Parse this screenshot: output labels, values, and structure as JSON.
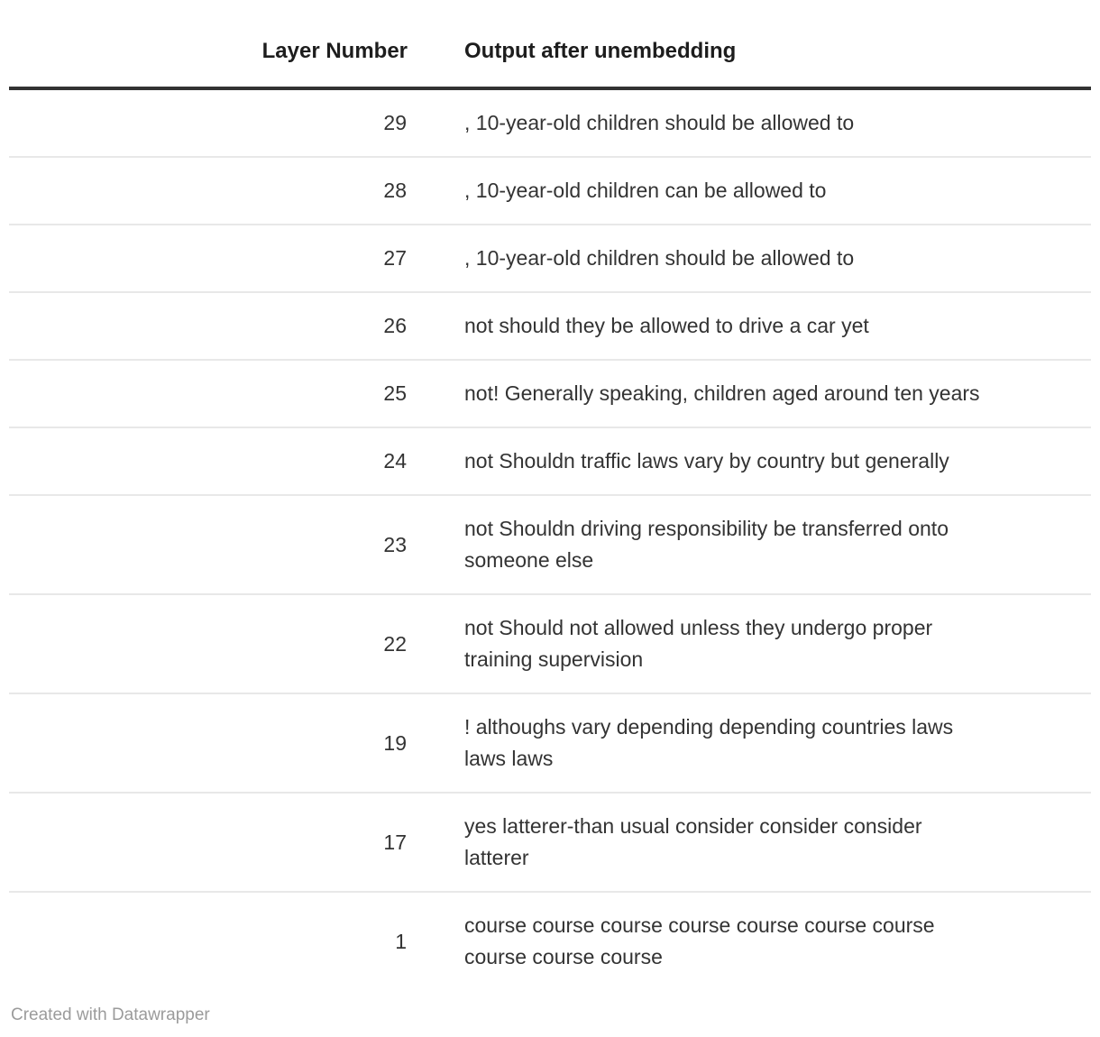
{
  "chart_data": {
    "type": "table",
    "columns": [
      "Layer Number",
      "Output after unembedding"
    ],
    "rows": [
      {
        "layer": "29",
        "output": ", 10-year-old children should be allowed to"
      },
      {
        "layer": "28",
        "output": ", 10-year-old children can be allowed to"
      },
      {
        "layer": "27",
        "output": ", 10-year-old children should be allowed to"
      },
      {
        "layer": "26",
        "output": "not should they be allowed to drive a car yet"
      },
      {
        "layer": "25",
        "output": "not! Generally speaking, children aged around ten years"
      },
      {
        "layer": "24",
        "output": "not Shouldn traffic laws vary by country but generally"
      },
      {
        "layer": "23",
        "output": "not Shouldn driving responsibility be transferred onto\nsomeone else"
      },
      {
        "layer": "22",
        "output": "not Should not allowed unless they undergo proper\ntraining supervision"
      },
      {
        "layer": "19",
        "output": "! althoughs vary depending depending countries laws\nlaws laws"
      },
      {
        "layer": "17",
        "output": "yes latterer-than usual consider consider consider\nlatterer"
      },
      {
        "layer": "1",
        "output": "course course course course course course course\ncourse course course"
      }
    ]
  },
  "footer": {
    "credit": "Created with Datawrapper"
  },
  "colors": {
    "header_text": "#1d1d1d",
    "body_text": "#333333",
    "header_rule": "#333333",
    "row_separator": "#e8e8e8",
    "credit_text": "#9b9b9b"
  }
}
